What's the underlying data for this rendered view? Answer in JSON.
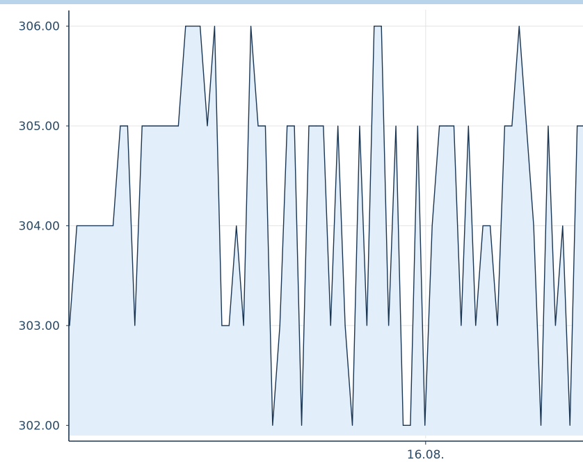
{
  "colors": {
    "top_band": "#b9d4ea",
    "plot_background": "#ffffff",
    "area_fill": "#e2eefa",
    "line": "#1a3552",
    "grid": "#e4e4e4",
    "axis": "#1a3552",
    "tick_text": "#2b4a66"
  },
  "chart_data": {
    "type": "area",
    "title": "",
    "xlabel": "",
    "ylabel": "",
    "ylim": [
      301.87,
      306.22
    ],
    "yticks": [
      "302.00",
      "303.00",
      "304.00",
      "305.00",
      "306.00"
    ],
    "xticks": [
      {
        "label": "16.08.",
        "at": 24.55
      }
    ],
    "xlim": [
      0,
      35.4
    ],
    "grid": true,
    "legend": "none",
    "series": [
      {
        "x": [
          0,
          0.5,
          3,
          3.5,
          4,
          4.5,
          5,
          5.5,
          7.5,
          8,
          9,
          9.5,
          10,
          10.5,
          11,
          11.5,
          12,
          12.5,
          13,
          13.5,
          14,
          14.5,
          15,
          15.5,
          16,
          16.5,
          17,
          17.5,
          18,
          18.5,
          19,
          19.5,
          20,
          20.5,
          21,
          21.5,
          22,
          22.5,
          23,
          23.5,
          24,
          24.5,
          25,
          25.5,
          26,
          26.5,
          27,
          27.5,
          28,
          28.5,
          29,
          29.5,
          30,
          30.5,
          31,
          31.5,
          32,
          32.5,
          33,
          33.5,
          34,
          34.5,
          35,
          35.4
        ],
        "y": [
          303,
          304,
          304,
          305,
          305,
          303,
          305,
          305,
          305,
          306,
          306,
          305,
          306,
          303,
          303,
          304,
          303,
          306,
          305,
          305,
          302,
          303,
          305,
          305,
          302,
          305,
          305,
          305,
          303,
          305,
          303,
          302,
          305,
          303,
          306,
          306,
          303,
          305,
          302,
          302,
          305,
          302,
          304,
          305,
          305,
          305,
          303,
          305,
          303,
          304,
          304,
          303,
          305,
          305,
          306,
          305,
          304,
          302,
          305,
          303,
          304,
          302,
          305,
          305
        ]
      }
    ]
  }
}
